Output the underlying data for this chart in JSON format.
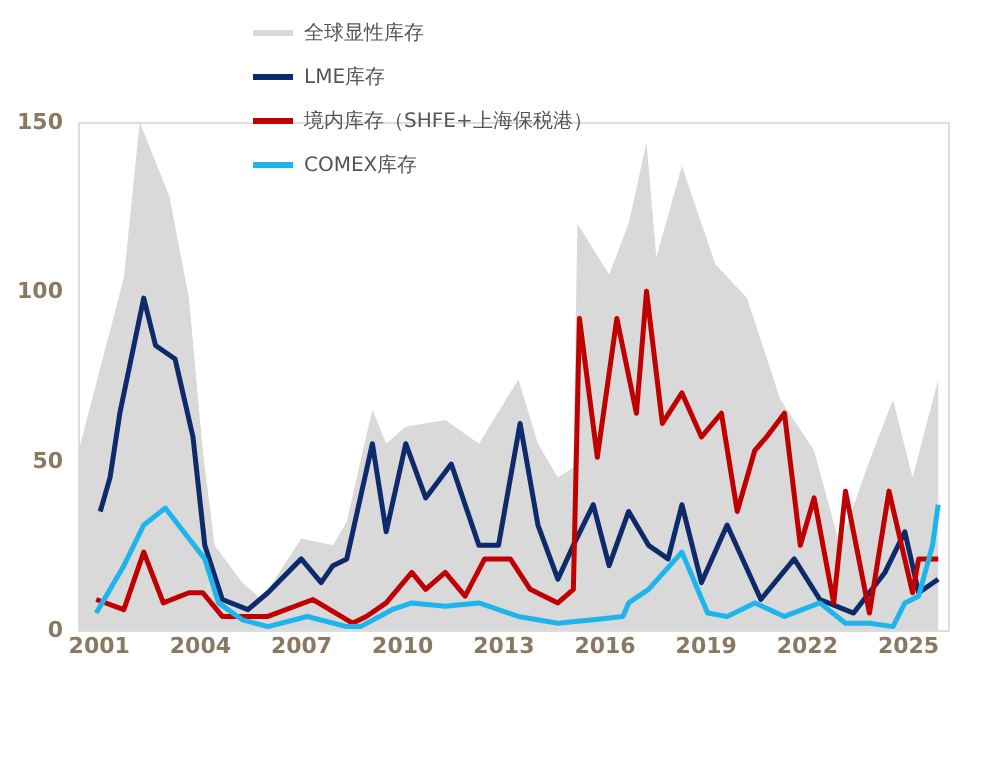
{
  "chart_data": {
    "type": "line",
    "xlim": [
      2000.4,
      2026.2
    ],
    "xticks": [
      2001,
      2004,
      2007,
      2010,
      2013,
      2016,
      2019,
      2022,
      2025
    ],
    "ylim": [
      0,
      150
    ],
    "yticks": [
      0,
      50,
      100,
      150
    ],
    "grid": false,
    "legend": "top",
    "line_style": "solid",
    "marker": "none",
    "series": [
      {
        "name": "全球显性库存",
        "type": "area",
        "color": "#d9d9d9",
        "x": [
          2000.42,
          2001.76,
          2002.23,
          2003.11,
          2003.69,
          2004.1,
          2004.45,
          2005.27,
          2005.85,
          2007.02,
          2007.96,
          2008.37,
          2008.78,
          2009.13,
          2009.54,
          2010.12,
          2011.29,
          2012.29,
          2013.46,
          2014.04,
          2014.63,
          2015.09,
          2015.21,
          2016.15,
          2016.73,
          2017.26,
          2017.55,
          2018.31,
          2019.3,
          2020.24,
          2021.23,
          2022.23,
          2022.99,
          2023.87,
          2024.57,
          2025.15,
          2025.91
        ],
        "values": [
          53,
          104,
          150,
          128,
          98,
          53,
          25,
          14,
          9,
          27,
          25,
          32,
          50,
          65,
          55,
          60,
          62,
          55,
          74,
          55,
          45,
          48,
          120,
          105,
          120,
          144,
          110,
          137,
          108,
          98,
          68,
          53,
          25,
          50,
          68,
          45,
          74
        ]
      },
      {
        "name": "LME库存",
        "color": "#0d2b6b",
        "x": [
          2001.06,
          2001.35,
          2001.64,
          2002.35,
          2002.7,
          2003.28,
          2003.81,
          2004.16,
          2004.68,
          2005.44,
          2006.03,
          2007.02,
          2007.61,
          2007.96,
          2008.37,
          2009.13,
          2009.54,
          2010.12,
          2010.71,
          2011.47,
          2012.29,
          2012.87,
          2013.51,
          2014.04,
          2014.63,
          2015.09,
          2015.68,
          2016.15,
          2016.73,
          2017.32,
          2017.9,
          2018.31,
          2018.89,
          2019.65,
          2020.65,
          2021.64,
          2022.4,
          2023.4,
          2024.33,
          2024.92,
          2025.33,
          2025.91
        ],
        "values": [
          35,
          45,
          64,
          98,
          84,
          80,
          57,
          25,
          9,
          6,
          11,
          21,
          14,
          19,
          21,
          55,
          29,
          55,
          39,
          49,
          25,
          25,
          61,
          31,
          15,
          25,
          37,
          19,
          35,
          25,
          21,
          37,
          14,
          31,
          9,
          21,
          9,
          5,
          17,
          29,
          11,
          15
        ]
      },
      {
        "name": "境内库存（SHFE+上海保税港）",
        "color": "#c00000",
        "x": [
          2000.94,
          2001.76,
          2002.35,
          2002.93,
          2003.69,
          2004.1,
          2004.68,
          2006.03,
          2007.37,
          2008.54,
          2008.95,
          2009.54,
          2010.3,
          2010.71,
          2011.29,
          2011.88,
          2012.46,
          2013.22,
          2013.81,
          2014.63,
          2015.09,
          2015.27,
          2015.8,
          2016.38,
          2016.96,
          2017.26,
          2017.73,
          2018.31,
          2018.89,
          2019.48,
          2019.95,
          2020.47,
          2020.82,
          2021.35,
          2021.82,
          2022.23,
          2022.81,
          2023.16,
          2023.87,
          2024.45,
          2025.15,
          2025.33,
          2025.91
        ],
        "values": [
          9,
          6,
          23,
          8,
          11,
          11,
          4,
          4,
          9,
          2,
          4,
          8,
          17,
          12,
          17,
          10,
          21,
          21,
          12,
          8,
          12,
          92,
          51,
          92,
          64,
          100,
          61,
          70,
          57,
          64,
          35,
          53,
          57,
          64,
          25,
          39,
          8,
          41,
          5,
          41,
          11,
          21,
          21
        ]
      },
      {
        "name": "COMEX库存",
        "color": "#1eb4ec",
        "x": [
          2000.94,
          2001.76,
          2002.35,
          2002.99,
          2003.69,
          2004.16,
          2004.57,
          2005.27,
          2006.03,
          2007.2,
          2008.37,
          2008.78,
          2009.71,
          2010.3,
          2011.29,
          2012.29,
          2013.46,
          2014.63,
          2015.68,
          2016.56,
          2016.73,
          2017.32,
          2018.31,
          2019.07,
          2019.65,
          2020.47,
          2021.35,
          2022.4,
          2023.16,
          2023.87,
          2024.57,
          2024.92,
          2025.33,
          2025.74,
          2025.91
        ],
        "values": [
          5,
          19,
          31,
          36,
          27,
          21,
          8,
          3,
          1,
          4,
          1,
          1,
          6,
          8,
          7,
          8,
          4,
          2,
          3,
          4,
          8,
          12,
          23,
          5,
          4,
          8,
          4,
          8,
          2,
          2,
          1,
          8,
          10,
          25,
          37
        ]
      }
    ]
  }
}
